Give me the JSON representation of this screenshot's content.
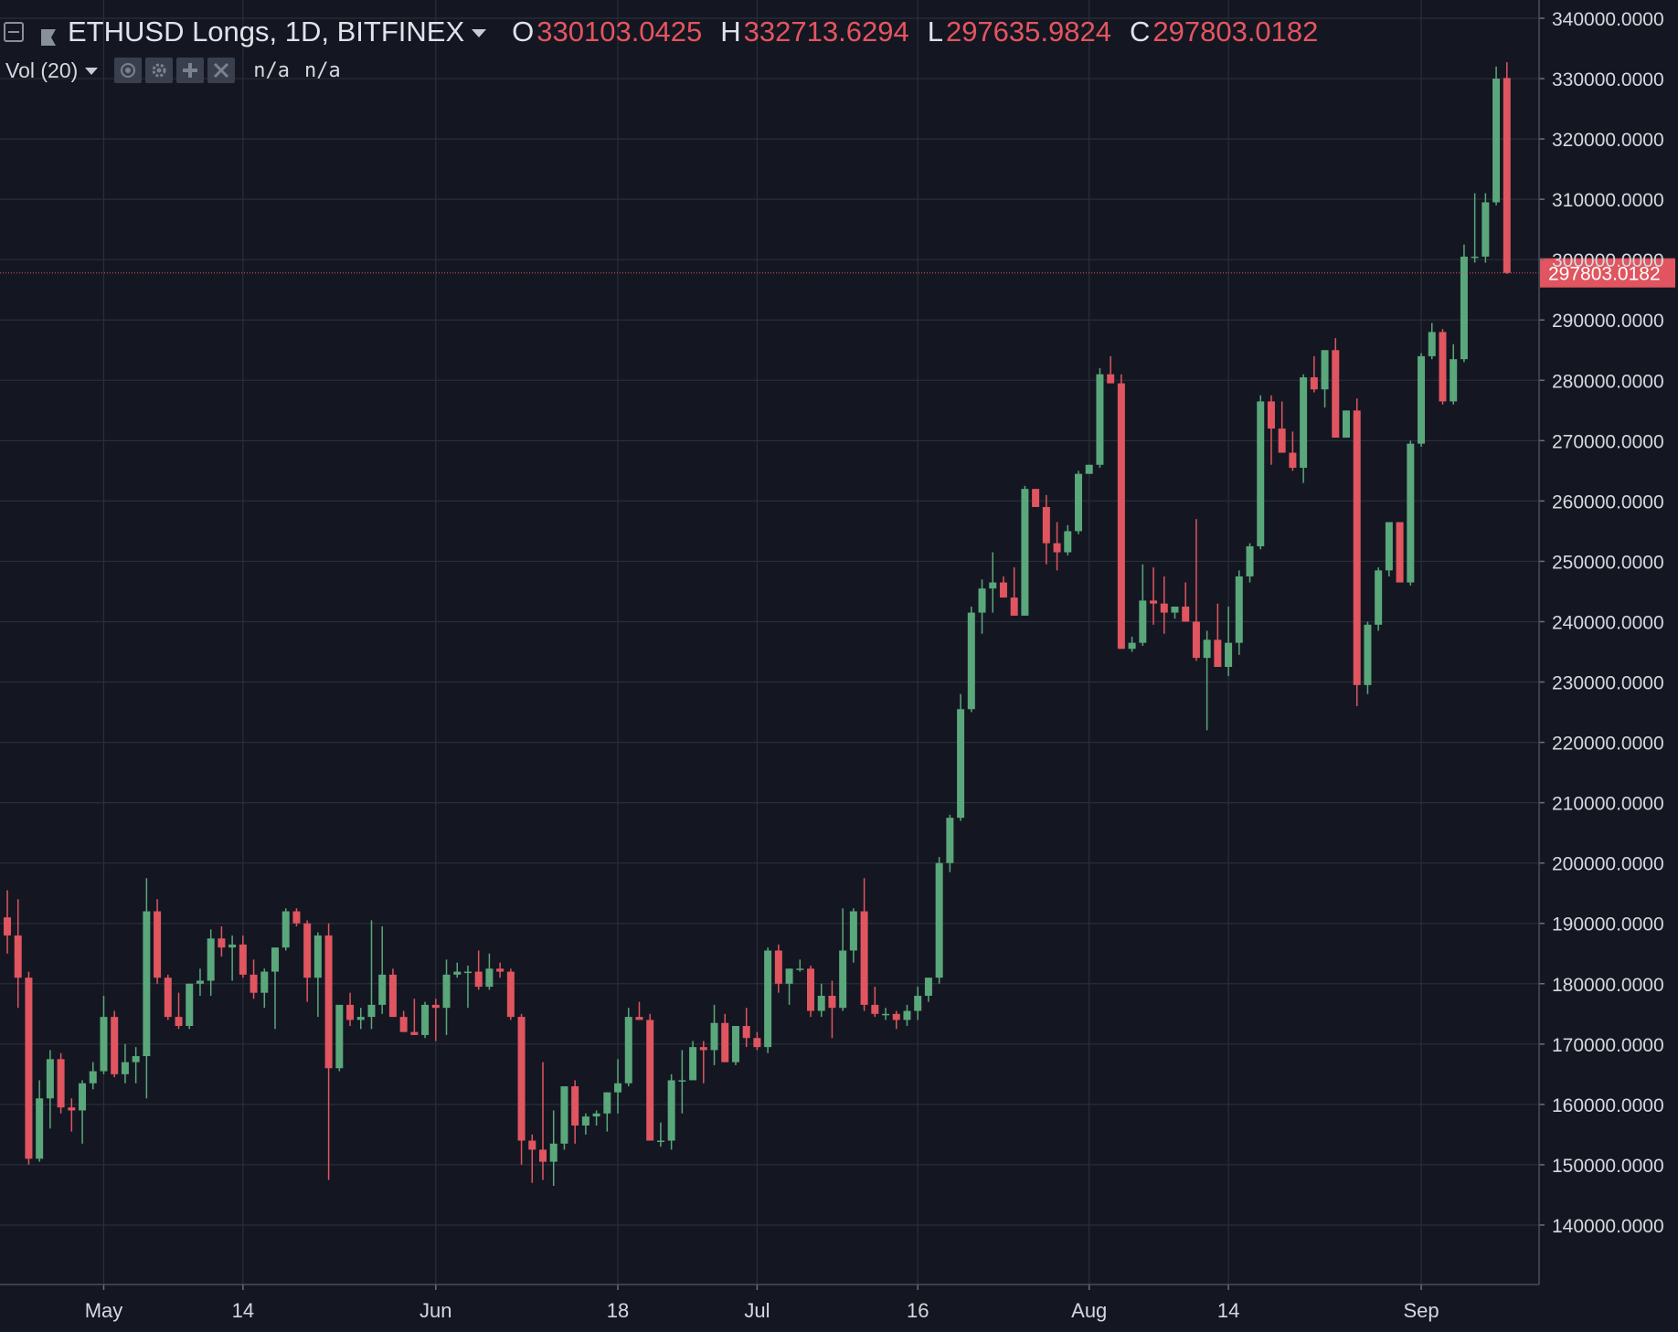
{
  "legend": {
    "symbol": "ETHUSD Longs, 1D, BITFINEX",
    "open_label": "O",
    "open_value": "330103.0425",
    "high_label": "H",
    "high_value": "332713.6294",
    "low_label": "L",
    "low_value": "297635.9824",
    "close_label": "C",
    "close_value": "297803.0182"
  },
  "volume_legend": {
    "label": "Vol (20)",
    "value1": "n/a",
    "value2": "n/a"
  },
  "icons": {
    "collapse": "collapse-icon",
    "flag": "flag-icon",
    "symbol_menu": "chevron-down-icon",
    "study_menu": "chevron-down-icon",
    "visibility": "eye-icon",
    "settings": "gear-icon",
    "add": "plus-icon",
    "remove": "close-icon"
  },
  "colors": {
    "background": "#141722",
    "grid": "#2a2e39",
    "up": "#5aa77b",
    "down": "#e0555f",
    "axis_text": "#d6d8de",
    "last_price": "#e0555f"
  },
  "chart_data": {
    "type": "candlestick",
    "ylim": [
      135000,
      340000
    ],
    "y_ticks": [
      {
        "value": 140000,
        "label": "140000.0000"
      },
      {
        "value": 150000,
        "label": "150000.0000"
      },
      {
        "value": 160000,
        "label": "160000.0000"
      },
      {
        "value": 170000,
        "label": "170000.0000"
      },
      {
        "value": 180000,
        "label": "180000.0000"
      },
      {
        "value": 190000,
        "label": "190000.0000"
      },
      {
        "value": 200000,
        "label": "200000.0000"
      },
      {
        "value": 210000,
        "label": "210000.0000"
      },
      {
        "value": 220000,
        "label": "220000.0000"
      },
      {
        "value": 230000,
        "label": "230000.0000"
      },
      {
        "value": 240000,
        "label": "240000.0000"
      },
      {
        "value": 250000,
        "label": "250000.0000"
      },
      {
        "value": 260000,
        "label": "260000.0000"
      },
      {
        "value": 270000,
        "label": "270000.0000"
      },
      {
        "value": 280000,
        "label": "280000.0000"
      },
      {
        "value": 290000,
        "label": "290000.0000"
      },
      {
        "value": 300000,
        "label": "300000.0000"
      },
      {
        "value": 310000,
        "label": "310000.0000"
      },
      {
        "value": 320000,
        "label": "320000.0000"
      },
      {
        "value": 330000,
        "label": "330000.0000"
      },
      {
        "value": 340000,
        "label": "340000.0000"
      }
    ],
    "x_ticks": [
      {
        "index": 9,
        "label": "May"
      },
      {
        "index": 22,
        "label": "14"
      },
      {
        "index": 40,
        "label": "Jun"
      },
      {
        "index": 57,
        "label": "18"
      },
      {
        "index": 70,
        "label": "Jul"
      },
      {
        "index": 85,
        "label": "16"
      },
      {
        "index": 101,
        "label": "Aug"
      },
      {
        "index": 114,
        "label": "14"
      },
      {
        "index": 132,
        "label": "Sep"
      }
    ],
    "last_price": {
      "value": 297803.0182,
      "label": "297803.0182"
    },
    "candles": [
      [
        191000,
        195500,
        185000,
        188000
      ],
      [
        188000,
        194000,
        176000,
        181000
      ],
      [
        181000,
        182000,
        150000,
        151000
      ],
      [
        151000,
        164000,
        150500,
        161000
      ],
      [
        161000,
        169000,
        156000,
        167500
      ],
      [
        167500,
        168500,
        158500,
        159500
      ],
      [
        159500,
        161000,
        155500,
        159000
      ],
      [
        159000,
        164000,
        153500,
        163500
      ],
      [
        163500,
        167000,
        162500,
        165500
      ],
      [
        165500,
        178000,
        165000,
        174500
      ],
      [
        174500,
        175500,
        164500,
        165000
      ],
      [
        165000,
        170000,
        163500,
        167000
      ],
      [
        167000,
        169500,
        163500,
        168000
      ],
      [
        168000,
        197500,
        161000,
        192000
      ],
      [
        192000,
        194000,
        180000,
        181000
      ],
      [
        181000,
        181500,
        174000,
        174500
      ],
      [
        174500,
        178500,
        172500,
        173000
      ],
      [
        173000,
        180000,
        172500,
        180000
      ],
      [
        180000,
        182500,
        178000,
        180500
      ],
      [
        180500,
        189000,
        178000,
        187500
      ],
      [
        187500,
        189500,
        184500,
        186000
      ],
      [
        186000,
        188000,
        180500,
        186500
      ],
      [
        186500,
        188000,
        181000,
        181500
      ],
      [
        181500,
        184000,
        177500,
        178500
      ],
      [
        178500,
        182500,
        176000,
        182000
      ],
      [
        182000,
        186000,
        172500,
        186000
      ],
      [
        186000,
        192500,
        185500,
        192000
      ],
      [
        192000,
        192500,
        189500,
        190000
      ],
      [
        190000,
        190500,
        177000,
        181000
      ],
      [
        181000,
        188500,
        174500,
        188000
      ],
      [
        188000,
        190000,
        147500,
        166000
      ],
      [
        166000,
        175000,
        165500,
        176500
      ],
      [
        176500,
        178500,
        173000,
        174000
      ],
      [
        174000,
        176000,
        172500,
        174500
      ],
      [
        174500,
        190500,
        172500,
        176500
      ],
      [
        176500,
        189500,
        175000,
        181500
      ],
      [
        181500,
        182500,
        174500,
        174500
      ],
      [
        174500,
        175500,
        172000,
        172000
      ],
      [
        172000,
        177500,
        171500,
        171500
      ],
      [
        171500,
        177000,
        171000,
        176500
      ],
      [
        176500,
        177500,
        170500,
        176000
      ],
      [
        176000,
        184000,
        171500,
        181500
      ],
      [
        181500,
        183500,
        181000,
        182000
      ],
      [
        182000,
        183000,
        176000,
        182000
      ],
      [
        182000,
        185500,
        179000,
        179500
      ],
      [
        179500,
        185000,
        179000,
        182500
      ],
      [
        182500,
        183500,
        181000,
        182000
      ],
      [
        182000,
        182500,
        174000,
        174500
      ],
      [
        174500,
        175000,
        150000,
        154000
      ],
      [
        154000,
        155000,
        147000,
        152500
      ],
      [
        152500,
        167000,
        147500,
        150500
      ],
      [
        150500,
        159000,
        146500,
        153500
      ],
      [
        153500,
        163000,
        152500,
        163000
      ],
      [
        163000,
        164000,
        153500,
        156500
      ],
      [
        156500,
        158500,
        155000,
        158000
      ],
      [
        158000,
        159000,
        156500,
        158500
      ],
      [
        158500,
        162000,
        155500,
        162000
      ],
      [
        162000,
        167500,
        158500,
        163500
      ],
      [
        163500,
        176000,
        163000,
        174500
      ],
      [
        174500,
        177000,
        174000,
        174000
      ],
      [
        174000,
        175000,
        154000,
        154000
      ],
      [
        154000,
        157000,
        153000,
        154000
      ],
      [
        154000,
        165000,
        152500,
        164000
      ],
      [
        164000,
        169000,
        158500,
        164000
      ],
      [
        164000,
        170500,
        164000,
        169500
      ],
      [
        169500,
        170500,
        163500,
        169000
      ],
      [
        169000,
        176500,
        166500,
        173500
      ],
      [
        173500,
        175000,
        167000,
        167000
      ],
      [
        167000,
        173000,
        166500,
        173000
      ],
      [
        173000,
        176000,
        169500,
        171000
      ],
      [
        171000,
        172000,
        169000,
        169500
      ],
      [
        169500,
        186000,
        168500,
        185500
      ],
      [
        185500,
        186500,
        178500,
        180000
      ],
      [
        180000,
        182500,
        176500,
        182500
      ],
      [
        182500,
        184000,
        182000,
        182500
      ],
      [
        182500,
        183000,
        174500,
        175500
      ],
      [
        175500,
        180000,
        174500,
        178000
      ],
      [
        178000,
        180500,
        171000,
        176000
      ],
      [
        176000,
        192500,
        175500,
        185500
      ],
      [
        185500,
        192500,
        183500,
        192000
      ],
      [
        192000,
        197500,
        175500,
        176500
      ],
      [
        176500,
        179500,
        174500,
        175000
      ],
      [
        175000,
        176000,
        174000,
        175000
      ],
      [
        175000,
        175500,
        172500,
        174000
      ],
      [
        174000,
        176500,
        173000,
        175500
      ],
      [
        175500,
        179500,
        174000,
        178000
      ],
      [
        178000,
        181000,
        177000,
        181000
      ],
      [
        181000,
        201000,
        180000,
        200000
      ],
      [
        200000,
        208000,
        198500,
        207500
      ],
      [
        207500,
        228000,
        207000,
        225500
      ],
      [
        225500,
        242500,
        225000,
        241500
      ],
      [
        241500,
        247000,
        238000,
        245500
      ],
      [
        245500,
        251500,
        241500,
        246500
      ],
      [
        246500,
        247500,
        244000,
        244000
      ],
      [
        244000,
        249000,
        241000,
        241000
      ],
      [
        241000,
        262500,
        241000,
        262000
      ],
      [
        262000,
        262000,
        259000,
        259000
      ],
      [
        259000,
        261000,
        249500,
        253000
      ],
      [
        253000,
        256500,
        248500,
        251500
      ],
      [
        251500,
        256000,
        251000,
        255000
      ],
      [
        255000,
        265000,
        254500,
        264500
      ],
      [
        264500,
        266000,
        264500,
        266000
      ],
      [
        266000,
        282000,
        265500,
        281000
      ],
      [
        281000,
        284000,
        279500,
        279500
      ],
      [
        279500,
        281000,
        235500,
        235500
      ],
      [
        235500,
        237500,
        235000,
        236500
      ],
      [
        236500,
        249500,
        236000,
        243500
      ],
      [
        243500,
        249000,
        239500,
        243000
      ],
      [
        243000,
        247500,
        238000,
        241500
      ],
      [
        241500,
        241500,
        240500,
        242500
      ],
      [
        242500,
        246500,
        240000,
        240000
      ],
      [
        240000,
        257000,
        233500,
        234000
      ],
      [
        234000,
        238500,
        222000,
        237000
      ],
      [
        237000,
        243000,
        232500,
        232500
      ],
      [
        232500,
        242500,
        231000,
        236500
      ],
      [
        236500,
        248500,
        234500,
        247500
      ],
      [
        247500,
        253000,
        246500,
        252500
      ],
      [
        252500,
        277500,
        252000,
        276500
      ],
      [
        276500,
        277500,
        266000,
        272000
      ],
      [
        272000,
        276500,
        268500,
        268000
      ],
      [
        268000,
        271500,
        265000,
        265500
      ],
      [
        265500,
        281000,
        263000,
        280500
      ],
      [
        280500,
        284000,
        278000,
        278500
      ],
      [
        278500,
        285000,
        275500,
        285000
      ],
      [
        285000,
        287000,
        270500,
        270500
      ],
      [
        270500,
        275000,
        270500,
        275000
      ],
      [
        275000,
        277000,
        226000,
        229500
      ],
      [
        229500,
        240000,
        228000,
        239500
      ],
      [
        239500,
        249000,
        238500,
        248500
      ],
      [
        248500,
        256500,
        247500,
        256500
      ],
      [
        256500,
        256500,
        246500,
        246500
      ],
      [
        246500,
        270000,
        246000,
        269500
      ],
      [
        269500,
        284500,
        269000,
        284000
      ],
      [
        284000,
        289500,
        283500,
        288000
      ],
      [
        288000,
        288500,
        276000,
        276500
      ],
      [
        276500,
        286000,
        276000,
        283500
      ],
      [
        283500,
        302500,
        283000,
        300500
      ],
      [
        300500,
        311000,
        299500,
        300500
      ],
      [
        300500,
        311000,
        299500,
        309500
      ],
      [
        309500,
        332000,
        309000,
        330000
      ],
      [
        330103.0425,
        332713.6294,
        297635.9824,
        297803.0182
      ]
    ]
  }
}
